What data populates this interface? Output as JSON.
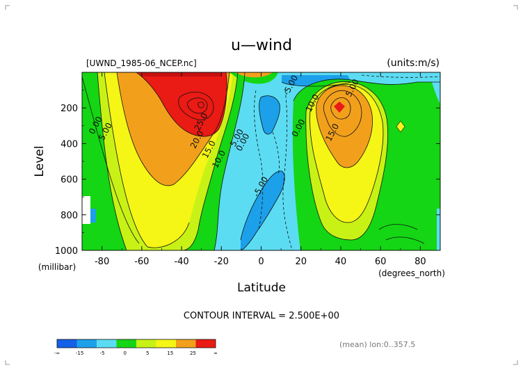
{
  "chart_data": {
    "type": "contour",
    "title": "u—wind",
    "source_file": "[UWND_1985-06_NCEP.nc]",
    "units_label": "(units:m/s)",
    "xlabel": "Latitude",
    "x_units": "(degrees_north)",
    "ylabel": "Level",
    "y_units": "(millibar)",
    "xlim": [
      -90,
      90
    ],
    "ylim": [
      1000,
      0
    ],
    "x_ticks": [
      -80,
      -60,
      -40,
      -20,
      0,
      20,
      40,
      60,
      80
    ],
    "y_ticks": [
      200,
      400,
      600,
      800,
      1000
    ],
    "contour_interval_text": "CONTOUR INTERVAL = 2.500E+00",
    "mean_text": "(mean) lon:0..357.5",
    "contour_labels": [
      {
        "text": "0.00",
        "x": -82,
        "y": 305
      },
      {
        "text": "5.00",
        "x": -77,
        "y": 340
      },
      {
        "text": "25.0",
        "x": -29,
        "y": 285
      },
      {
        "text": "20.0",
        "x": -31,
        "y": 385
      },
      {
        "text": "15.0",
        "x": -25,
        "y": 440
      },
      {
        "text": "10.0",
        "x": -20,
        "y": 495
      },
      {
        "text": "5.00",
        "x": -11,
        "y": 375
      },
      {
        "text": "0.00",
        "x": -8,
        "y": 400
      },
      {
        "text": "-5.00",
        "x": 16,
        "y": 80
      },
      {
        "text": "-5.00",
        "x": 1,
        "y": 650
      },
      {
        "text": "0.00",
        "x": 20,
        "y": 320
      },
      {
        "text": "5.00",
        "x": 47,
        "y": 95
      },
      {
        "text": "10.0",
        "x": 27,
        "y": 180
      },
      {
        "text": "15.0",
        "x": 37,
        "y": 345
      }
    ],
    "colorbar": {
      "colors": [
        "#1460e6",
        "#1ca0ea",
        "#5cdcf2",
        "#14d614",
        "#c8f216",
        "#f5f516",
        "#f2a01c",
        "#ea1a14"
      ],
      "tick_labels": [
        "-∞",
        "-15",
        "-5",
        "0",
        "5",
        "15",
        "25",
        "∞"
      ]
    }
  }
}
